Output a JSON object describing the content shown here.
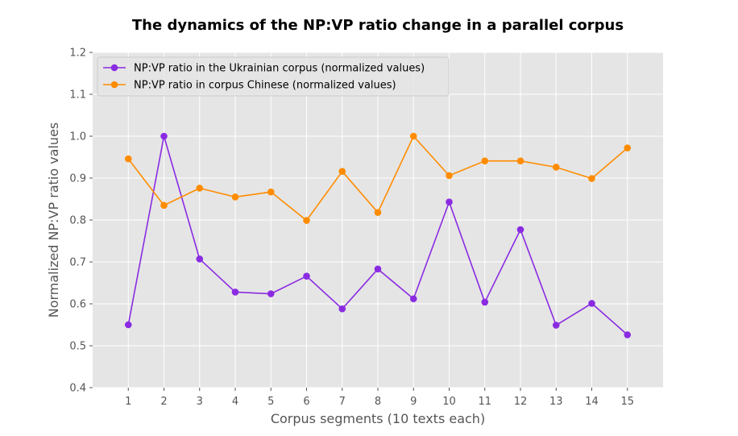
{
  "chart_data": {
    "type": "line",
    "title": "The dynamics of the NP:VP ratio change in a parallel corpus",
    "xlabel": "Corpus segments (10 texts each)",
    "ylabel": "Normalized NP:VP ratio values",
    "x": [
      1,
      2,
      3,
      4,
      5,
      6,
      7,
      8,
      9,
      10,
      11,
      12,
      13,
      14,
      15
    ],
    "xlim": [
      0,
      16
    ],
    "ylim": [
      0.4,
      1.2
    ],
    "yticks": [
      "0.4",
      "0.5",
      "0.6",
      "0.7",
      "0.8",
      "0.9",
      "1.0",
      "1.1",
      "1.2"
    ],
    "grid": true,
    "legend_position": "top-left",
    "series": [
      {
        "name": "NP:VP ratio in the Ukrainian corpus (normalized values)",
        "color": "#8a2be2",
        "values": [
          0.55,
          1.0,
          0.707,
          0.628,
          0.624,
          0.666,
          0.588,
          0.683,
          0.612,
          0.843,
          0.604,
          0.777,
          0.549,
          0.601,
          0.526
        ]
      },
      {
        "name": "NP:VP ratio in corpus Chinese (normalized values)",
        "color": "#ff8c00",
        "values": [
          0.946,
          0.835,
          0.876,
          0.855,
          0.867,
          0.799,
          0.916,
          0.818,
          1.0,
          0.906,
          0.941,
          0.941,
          0.926,
          0.899,
          0.972
        ]
      }
    ]
  }
}
